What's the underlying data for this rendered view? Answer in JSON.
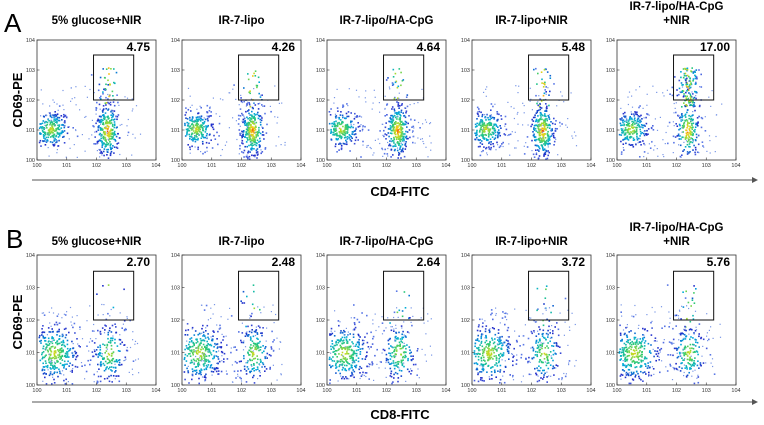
{
  "chart_data": [
    {
      "type": "scatter",
      "panel": "A",
      "ylabel": "CD69-PE",
      "xlabel": "CD4-FITC",
      "x_ticks": [
        "10^0",
        "10^1",
        "10^2",
        "10^3",
        "10^4"
      ],
      "y_ticks": [
        "10^0",
        "10^1",
        "10^2",
        "10^3",
        "10^4"
      ],
      "xlim": [
        0,
        4
      ],
      "ylim": [
        0,
        4
      ],
      "plots": [
        {
          "title": "5% glucose+NIR",
          "gate_percent": "4.75"
        },
        {
          "title": "IR-7-lipo",
          "gate_percent": "4.26"
        },
        {
          "title": "IR-7-lipo/HA-CpG",
          "gate_percent": "4.64"
        },
        {
          "title": "IR-7-lipo+NIR",
          "gate_percent": "5.48"
        },
        {
          "title": "IR-7-lipo/HA-CpG\n+NIR",
          "gate_percent": "17.00"
        }
      ]
    },
    {
      "type": "scatter",
      "panel": "B",
      "ylabel": "CD69-PE",
      "xlabel": "CD8-FITC",
      "x_ticks": [
        "10^0",
        "10^1",
        "10^2",
        "10^3",
        "10^4"
      ],
      "y_ticks": [
        "10^0",
        "10^1",
        "10^2",
        "10^3",
        "10^4"
      ],
      "xlim": [
        0,
        4
      ],
      "ylim": [
        0,
        4
      ],
      "plots": [
        {
          "title": "5% glucose+NIR",
          "gate_percent": "2.70"
        },
        {
          "title": "IR-7-lipo",
          "gate_percent": "2.48"
        },
        {
          "title": "IR-7-lipo/HA-CpG",
          "gate_percent": "2.64"
        },
        {
          "title": "IR-7-lipo+NIR",
          "gate_percent": "3.72"
        },
        {
          "title": "IR-7-lipo/HA-CpG\n+NIR",
          "gate_percent": "5.76"
        }
      ]
    }
  ]
}
